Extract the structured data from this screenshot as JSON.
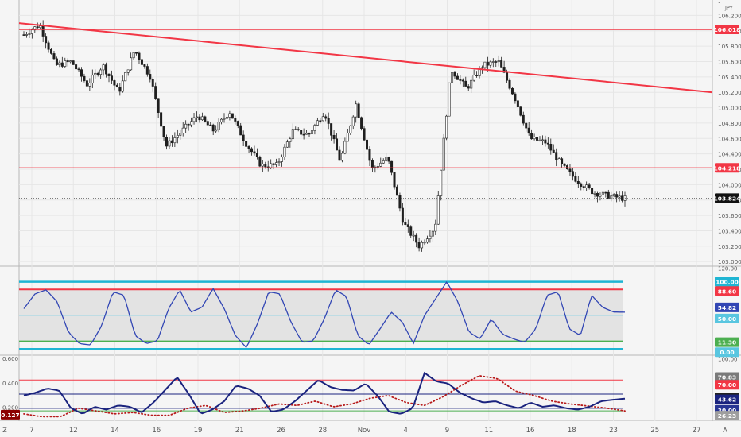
{
  "colors": {
    "background": "#f5f5f5",
    "panel_border": "#b7b7b7",
    "grid": "#e6e6e6",
    "candle": "#1f1f1f",
    "red_line": "#f23645",
    "cyan_band": "#1fb5d3",
    "osc_blue": "#3246b4",
    "navy": "#1a237e",
    "green": "#4caf50",
    "dotted_red": "#b71c1c",
    "axis_text": "#555555"
  },
  "main_axis": {
    "currency_label": "JPY",
    "scale_label": "1",
    "ticks": [
      "106.200",
      "106.000",
      "105.800",
      "105.600",
      "105.400",
      "105.200",
      "105.000",
      "104.800",
      "104.600",
      "104.400",
      "104.200",
      "104.000",
      "103.800",
      "103.600",
      "103.400",
      "103.200",
      "103.000"
    ],
    "ymin": 102.95,
    "ymax": 106.38,
    "badges": {
      "resistance": "106.018",
      "support": "104.218",
      "last": "103.824"
    }
  },
  "osc1_axis": {
    "ticks": [
      "120.00",
      "100.00",
      "88.60",
      "54.82",
      "50.00",
      "11.30",
      "0.00"
    ],
    "ymin": -8,
    "ymax": 122,
    "plain_ticks": [
      "120.00"
    ],
    "badges": {
      "upper": "100.00",
      "overbought": "88.60",
      "value": "54.82",
      "mid": "50.00",
      "oversold": "11.30",
      "lower": "0.00"
    }
  },
  "osc2_axis": {
    "left_ticks": [
      "0.600",
      "0.400",
      "0.200"
    ],
    "left_badge": "0.127",
    "left_min": 0.1,
    "left_max": 0.62,
    "right_ticks": [
      "100.00"
    ],
    "right_min": 14,
    "right_max": 104,
    "badges": {
      "a": "70.83",
      "b": "70.00",
      "c": "50.00",
      "d": "43.62",
      "e": "30.00",
      "f": "26.23"
    }
  },
  "x_axis": {
    "labels": [
      "7",
      "12",
      "14",
      "16",
      "19",
      "21",
      "26",
      "28",
      "Nov",
      "4",
      "9",
      "11",
      "16",
      "18",
      "23",
      "25",
      "27"
    ],
    "edge_left": "Z",
    "edge_right": "A"
  },
  "chart_data": {
    "type": "candlestick",
    "title": "",
    "ylabel": "",
    "horizontal_levels": [
      106.018,
      104.218
    ],
    "last_price": 103.824,
    "trendline": {
      "start": 106.1,
      "end": 105.2
    },
    "candle_count": 220,
    "price_path": [
      105.95,
      106.08,
      105.55,
      105.6,
      105.3,
      105.55,
      105.2,
      105.75,
      105.4,
      104.5,
      104.7,
      104.9,
      104.7,
      104.95,
      104.55,
      104.25,
      104.25,
      104.7,
      104.65,
      104.95,
      104.3,
      105.05,
      104.2,
      104.35,
      103.5,
      103.2,
      103.45,
      105.5,
      105.25,
      105.55,
      105.6,
      105.15,
      104.6,
      104.55,
      104.25,
      104.05,
      103.9,
      103.85,
      103.82
    ],
    "osc1": {
      "levels": {
        "upper": 100.0,
        "overbought": 88.6,
        "mid": 50.0,
        "oversold": 11.3,
        "lower": 0.0
      },
      "last": 54.82,
      "path": [
        60,
        82,
        88,
        70,
        25,
        8,
        6,
        35,
        85,
        80,
        20,
        8,
        12,
        60,
        88,
        55,
        62,
        90,
        60,
        20,
        2,
        38,
        85,
        82,
        40,
        10,
        12,
        45,
        88,
        78,
        20,
        6,
        30,
        55,
        40,
        8,
        50,
        75,
        100,
        70,
        25,
        15,
        45,
        22,
        15,
        10,
        30,
        80,
        85,
        30,
        20,
        80,
        62,
        55,
        54.8
      ]
    },
    "osc2": {
      "levels": {
        "a": 70.83,
        "b": 70.0,
        "c": 50.0,
        "d": 43.62,
        "e": 30.0,
        "f": 26.23
      },
      "left_value": 0.127,
      "main_path": [
        48,
        52,
        58,
        55,
        30,
        22,
        32,
        28,
        34,
        32,
        24,
        38,
        56,
        74,
        50,
        22,
        28,
        40,
        62,
        58,
        48,
        25,
        28,
        40,
        55,
        70,
        60,
        56,
        55,
        65,
        48,
        25,
        22,
        30,
        80,
        68,
        65,
        52,
        44,
        38,
        40,
        34,
        30,
        38,
        32,
        34,
        30,
        28,
        32,
        40,
        42,
        43.6
      ],
      "dots_path": [
        22,
        18,
        18,
        30,
        26,
        22,
        24,
        20,
        20,
        30,
        34,
        24,
        26,
        30,
        36,
        34,
        40,
        32,
        36,
        44,
        48,
        38,
        34,
        46,
        62,
        76,
        72,
        54,
        48,
        40,
        36,
        33,
        30,
        26.2
      ]
    }
  }
}
